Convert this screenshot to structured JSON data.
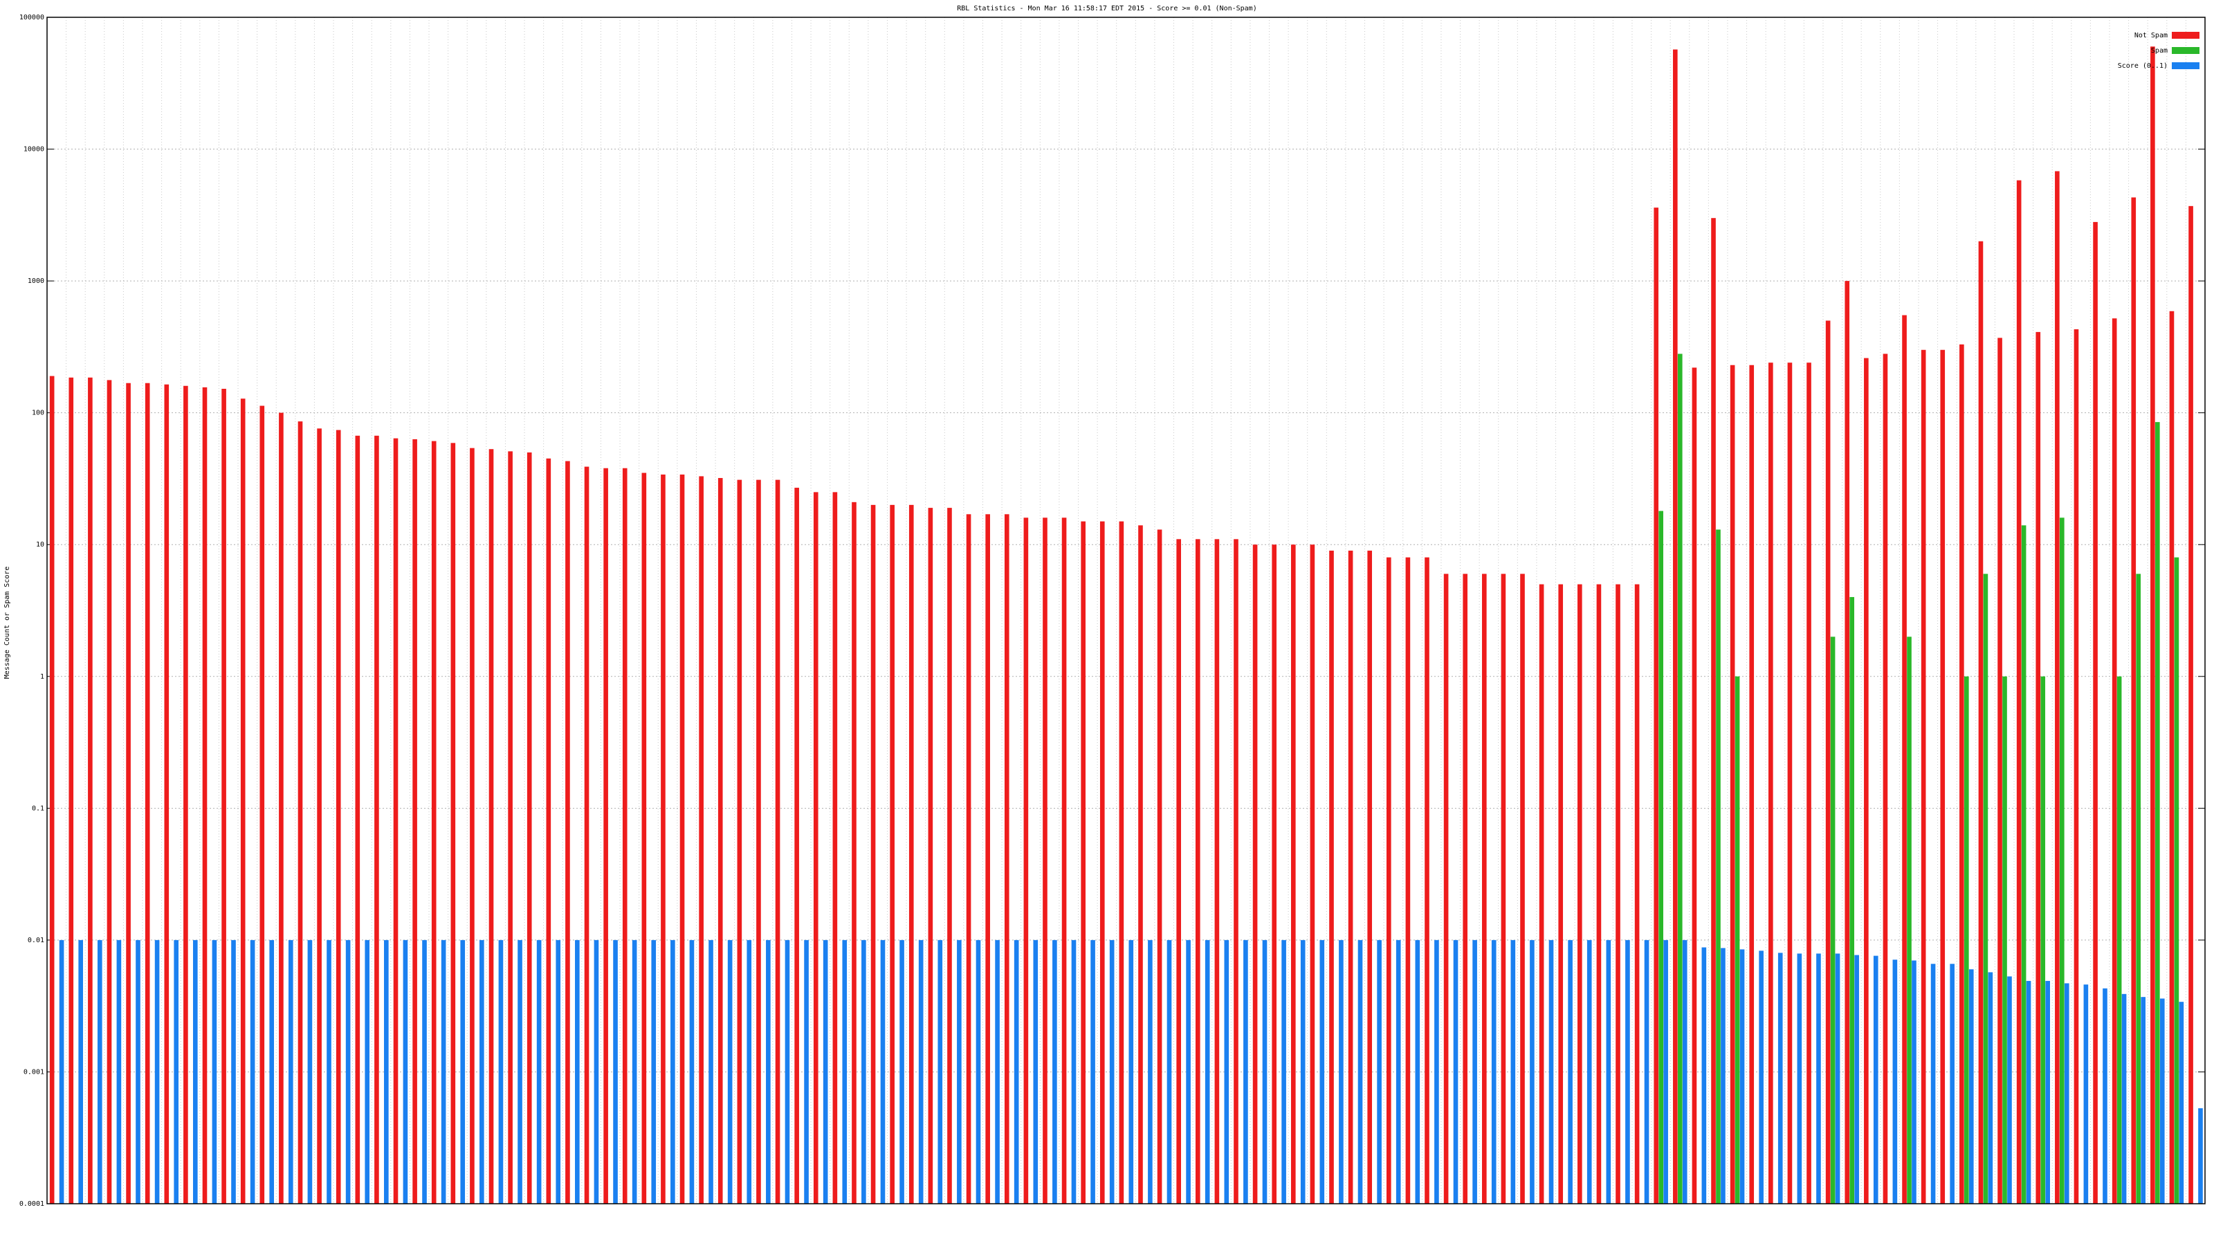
{
  "chart_data": {
    "type": "bar",
    "title": "RBL Statistics - Mon Mar 16 11:58:17 EDT 2015 - Score >= 0.01 (Non-Spam)",
    "y_label": "Message Count or Spam Score",
    "log_scale": true,
    "grid": true,
    "legend": "top-right",
    "ylim": [
      0.0001,
      100000
    ],
    "yticks": [
      0.0001,
      0.001,
      0.01,
      0.1,
      1,
      10,
      100,
      1000,
      10000,
      100000
    ],
    "categories": [
      null,
      null,
      null,
      null,
      null,
      null,
      null,
      null,
      null,
      null,
      null,
      null,
      null,
      null,
      null,
      null,
      null,
      null,
      null,
      null,
      null,
      null,
      null,
      null,
      null,
      null,
      null,
      null,
      null,
      null,
      null,
      null,
      null,
      null,
      null,
      null,
      null,
      null,
      null,
      null,
      null,
      null,
      null,
      null,
      null,
      null,
      null,
      null,
      null,
      null,
      null,
      null,
      null,
      null,
      null,
      null,
      null,
      null,
      null,
      null,
      null,
      null,
      null,
      null,
      null,
      null,
      null,
      null,
      null,
      null,
      null,
      null,
      null,
      null,
      null,
      null,
      null,
      null,
      null,
      null,
      null,
      null,
      null,
      null,
      null,
      null,
      null,
      null,
      null,
      null,
      null,
      null,
      null,
      null,
      null,
      null,
      null,
      null,
      null,
      null,
      null,
      null,
      null,
      null,
      null,
      null,
      null,
      null,
      null,
      null,
      null,
      null,
      null
    ],
    "series": [
      {
        "name": "Not Spam",
        "color": "#ee1c1c",
        "values": [
          190,
          185,
          185,
          177,
          168,
          168,
          164,
          160,
          156,
          152,
          128,
          113,
          100,
          86,
          76,
          74,
          67,
          67,
          64,
          63,
          61,
          59,
          54,
          53,
          51,
          50,
          45,
          43,
          39,
          38,
          38,
          35,
          34,
          34,
          33,
          32,
          31,
          31,
          31,
          27,
          25,
          25,
          21,
          20,
          20,
          20,
          19,
          19,
          17,
          17,
          17,
          16,
          16,
          16,
          15,
          15,
          15,
          14,
          13,
          11,
          11,
          11,
          11,
          10,
          10,
          10,
          10,
          9,
          9,
          9,
          8,
          8,
          8,
          6,
          6,
          6,
          6,
          6,
          5,
          5,
          5,
          5,
          5,
          5,
          3600,
          57000,
          220,
          3000,
          230,
          230,
          240,
          240,
          240,
          500,
          1000,
          260,
          280,
          550,
          300,
          300,
          330,
          2000,
          370,
          5800,
          410,
          6800,
          430,
          2800,
          520,
          4300,
          60000,
          590,
          3700
        ]
      },
      {
        "name": "Spam",
        "color": "#2ab82a",
        "values": [
          null,
          null,
          null,
          null,
          null,
          null,
          null,
          null,
          null,
          null,
          null,
          null,
          null,
          null,
          null,
          null,
          null,
          null,
          null,
          null,
          null,
          null,
          null,
          null,
          null,
          null,
          null,
          null,
          null,
          null,
          null,
          null,
          null,
          null,
          null,
          null,
          null,
          null,
          null,
          null,
          null,
          null,
          null,
          null,
          null,
          null,
          null,
          null,
          null,
          null,
          null,
          null,
          null,
          null,
          null,
          null,
          null,
          null,
          null,
          null,
          null,
          null,
          null,
          null,
          null,
          null,
          null,
          null,
          null,
          null,
          null,
          null,
          null,
          null,
          null,
          null,
          null,
          null,
          null,
          null,
          null,
          null,
          null,
          null,
          18,
          280,
          null,
          13,
          1,
          null,
          null,
          null,
          null,
          2,
          4,
          null,
          null,
          2,
          null,
          null,
          1,
          6,
          1,
          14,
          1,
          16,
          null,
          null,
          1,
          6,
          85,
          8,
          null
        ]
      },
      {
        "name": "Score (0..1)",
        "color": "#1a80f0",
        "values": [
          0.01,
          0.01,
          0.01,
          0.01,
          0.01,
          0.01,
          0.01,
          0.01,
          0.01,
          0.01,
          0.01,
          0.01,
          0.01,
          0.01,
          0.01,
          0.01,
          0.01,
          0.01,
          0.01,
          0.01,
          0.01,
          0.01,
          0.01,
          0.01,
          0.01,
          0.01,
          0.01,
          0.01,
          0.01,
          0.01,
          0.01,
          0.01,
          0.01,
          0.01,
          0.01,
          0.01,
          0.01,
          0.01,
          0.01,
          0.01,
          0.01,
          0.01,
          0.01,
          0.01,
          0.01,
          0.01,
          0.01,
          0.01,
          0.01,
          0.01,
          0.01,
          0.01,
          0.01,
          0.01,
          0.01,
          0.01,
          0.01,
          0.01,
          0.01,
          0.01,
          0.01,
          0.01,
          0.01,
          0.01,
          0.01,
          0.01,
          0.01,
          0.01,
          0.01,
          0.01,
          0.01,
          0.01,
          0.01,
          0.01,
          0.01,
          0.01,
          0.01,
          0.01,
          0.01,
          0.01,
          0.01,
          0.01,
          0.01,
          0.01,
          0.01,
          0.01,
          0.0088,
          0.0087,
          0.0085,
          0.0083,
          0.008,
          0.0079,
          0.0079,
          0.0079,
          0.0077,
          0.0076,
          0.0071,
          0.007,
          0.0066,
          0.0066,
          0.006,
          0.0057,
          0.0053,
          0.0049,
          0.0049,
          0.0047,
          0.0046,
          0.0043,
          0.0039,
          0.0037,
          0.0036,
          0.0034,
          0.00053
        ]
      }
    ]
  }
}
